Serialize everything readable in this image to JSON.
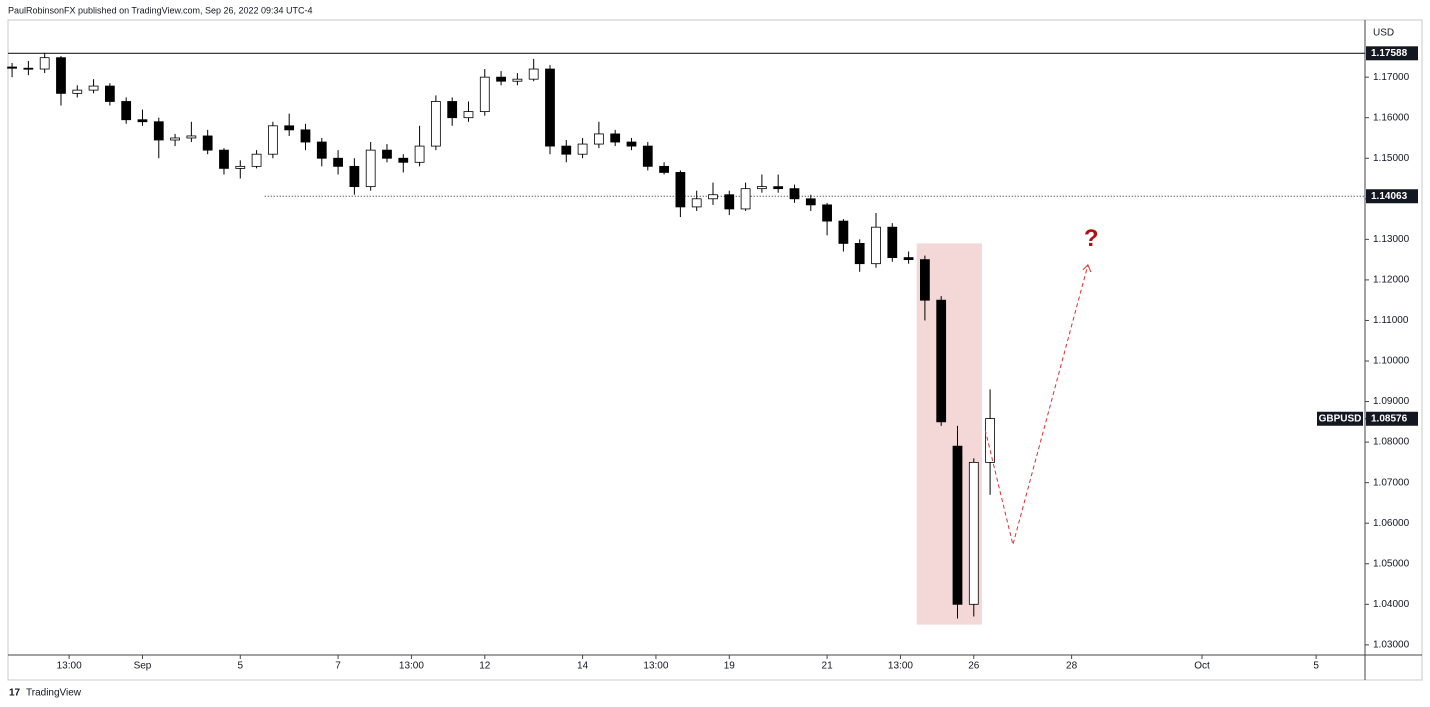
{
  "header": "PaulRobinsonFX published on TradingView.com, Sep 26, 2022 09:34 UTC-4",
  "footer": "TradingView",
  "chart_data": {
    "type": "candlestick",
    "symbol": "GBPUSD",
    "currency": "USD",
    "open": [
      1.1725,
      1.1722,
      1.172,
      1.1748,
      1.166,
      1.1668,
      1.1678,
      1.164,
      1.1595,
      1.159,
      1.1545,
      1.155,
      1.1555,
      1.152,
      1.1475,
      1.148,
      1.151,
      1.158,
      1.157,
      1.154,
      1.15,
      1.148,
      1.143,
      1.152,
      1.15,
      1.149,
      1.153,
      1.164,
      1.16,
      1.1615,
      1.17,
      1.169,
      1.1695,
      1.172,
      1.153,
      1.151,
      1.1535,
      1.156,
      1.154,
      1.153,
      1.148,
      1.1465,
      1.138,
      1.14,
      1.141,
      1.1375,
      1.1425,
      1.143,
      1.1425,
      1.14,
      1.1385,
      1.1345,
      1.129,
      1.124,
      1.133,
      1.1255,
      1.125,
      1.115,
      1.079,
      1.04,
      1.075
    ],
    "high": [
      1.1735,
      1.174,
      1.176,
      1.1752,
      1.168,
      1.1695,
      1.1685,
      1.165,
      1.162,
      1.16,
      1.156,
      1.159,
      1.157,
      1.1525,
      1.1495,
      1.152,
      1.159,
      1.161,
      1.1585,
      1.155,
      1.152,
      1.15,
      1.154,
      1.1535,
      1.151,
      1.158,
      1.1655,
      1.165,
      1.164,
      1.172,
      1.1715,
      1.171,
      1.1745,
      1.173,
      1.1545,
      1.155,
      1.159,
      1.157,
      1.155,
      1.154,
      1.149,
      1.147,
      1.142,
      1.144,
      1.142,
      1.144,
      1.146,
      1.146,
      1.1435,
      1.141,
      1.139,
      1.135,
      1.13,
      1.1365,
      1.134,
      1.127,
      1.126,
      1.116,
      1.084,
      1.076,
      1.093
    ],
    "low": [
      1.17,
      1.1705,
      1.171,
      1.163,
      1.165,
      1.166,
      1.163,
      1.1585,
      1.158,
      1.15,
      1.153,
      1.154,
      1.151,
      1.146,
      1.145,
      1.1475,
      1.15,
      1.1555,
      1.152,
      1.148,
      1.146,
      1.141,
      1.142,
      1.149,
      1.1465,
      1.148,
      1.152,
      1.158,
      1.159,
      1.1605,
      1.168,
      1.168,
      1.169,
      1.151,
      1.149,
      1.15,
      1.1525,
      1.153,
      1.152,
      1.147,
      1.146,
      1.1355,
      1.137,
      1.1385,
      1.136,
      1.137,
      1.1415,
      1.1415,
      1.139,
      1.137,
      1.131,
      1.127,
      1.122,
      1.123,
      1.1245,
      1.124,
      1.11,
      1.084,
      1.0365,
      1.037,
      1.067
    ],
    "close": [
      1.1722,
      1.172,
      1.1748,
      1.166,
      1.1668,
      1.1678,
      1.164,
      1.1595,
      1.159,
      1.1545,
      1.155,
      1.1555,
      1.152,
      1.1475,
      1.148,
      1.151,
      1.158,
      1.157,
      1.154,
      1.15,
      1.148,
      1.143,
      1.152,
      1.15,
      1.149,
      1.153,
      1.164,
      1.16,
      1.1615,
      1.17,
      1.169,
      1.1695,
      1.172,
      1.153,
      1.151,
      1.1535,
      1.156,
      1.154,
      1.153,
      1.148,
      1.1465,
      1.138,
      1.14,
      1.141,
      1.1375,
      1.1425,
      1.143,
      1.1425,
      1.14,
      1.1385,
      1.1345,
      1.129,
      1.124,
      1.133,
      1.1255,
      1.125,
      1.115,
      1.085,
      1.04,
      1.075,
      1.0858
    ],
    "up_color": "#ffffff",
    "down_color": "#000000",
    "xlim": [
      -0.25,
      83
    ],
    "xticks": [
      {
        "value": 3.5,
        "label": "13:00"
      },
      {
        "value": 8,
        "label": "Sep"
      },
      {
        "value": 14,
        "label": "5"
      },
      {
        "value": 20,
        "label": "7"
      },
      {
        "value": 24.5,
        "label": "13:00"
      },
      {
        "value": 29,
        "label": "12"
      },
      {
        "value": 35,
        "label": "14"
      },
      {
        "value": 39.5,
        "label": "13:00"
      },
      {
        "value": 44,
        "label": "19"
      },
      {
        "value": 50,
        "label": "21"
      },
      {
        "value": 54.5,
        "label": "13:00"
      },
      {
        "value": 59,
        "label": "26"
      },
      {
        "value": 65,
        "label": "28"
      },
      {
        "value": 73,
        "label": "Oct"
      },
      {
        "value": 80,
        "label": "5"
      }
    ],
    "ylim": [
      1.0275,
      1.1836
    ],
    "yticks": [
      {
        "value": 1.03,
        "label": "1.03000"
      },
      {
        "value": 1.04,
        "label": "1.04000"
      },
      {
        "value": 1.05,
        "label": "1.05000"
      },
      {
        "value": 1.06,
        "label": "1.06000"
      },
      {
        "value": 1.07,
        "label": "1.07000"
      },
      {
        "value": 1.08,
        "label": "1.08000"
      },
      {
        "value": 1.09,
        "label": "1.09000"
      },
      {
        "value": 1.1,
        "label": "1.10000"
      },
      {
        "value": 1.11,
        "label": "1.11000"
      },
      {
        "value": 1.12,
        "label": "1.12000"
      },
      {
        "value": 1.13,
        "label": "1.13000"
      },
      {
        "value": 1.14,
        "label": "1.14000"
      },
      {
        "value": 1.15,
        "label": "1.15000"
      },
      {
        "value": 1.16,
        "label": "1.16000"
      },
      {
        "value": 1.17,
        "label": "1.17000"
      }
    ],
    "levels": [
      {
        "value": 1.17588,
        "style": "solid"
      },
      {
        "value": 1.14063,
        "style": "dotted",
        "from": 15.5
      }
    ],
    "last_price": 1.08576,
    "highlight": {
      "xrange": [
        55.5,
        59.5
      ],
      "yrange": [
        1.035,
        1.129
      ],
      "color": "#f4d7d7"
    },
    "projection": {
      "x": [
        59.7,
        61.4,
        66
      ],
      "y": [
        1.083,
        1.0547,
        1.1237
      ],
      "color": "#e03030"
    },
    "annotation": {
      "text": "?",
      "x": 66.2,
      "y": 1.1299,
      "color": "#b01010"
    }
  }
}
